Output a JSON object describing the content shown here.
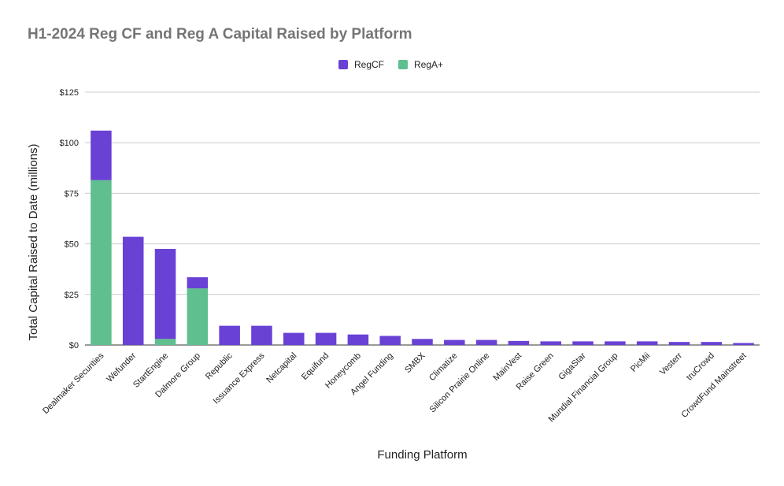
{
  "chart_data": {
    "type": "bar",
    "stacked": true,
    "title": "H1-2024 Reg CF and Reg A Capital Raised by Platform",
    "xlabel": "Funding Platform",
    "ylabel": "Total Capital Raised to Date (millions)",
    "ylim": [
      0,
      125
    ],
    "yticks": [
      "$0",
      "$25",
      "$50",
      "$75",
      "$100",
      "$125"
    ],
    "grid": true,
    "legend_position": "top",
    "categories": [
      "Dealmaker Securities",
      "Wefunder",
      "StartEngine",
      "Dalmore Group",
      "Republic",
      "Issuance Express",
      "Netcapital",
      "Equifund",
      "Honeycomb",
      "Angel Funding",
      "SMBX",
      "Climatize",
      "Silicon Prairie Online",
      "MainVest",
      "Raise Green",
      "GigaStar",
      "Mundial Financial Group",
      "PicMii",
      "Vesterr",
      "truCrowd",
      "CrowdFund Mainstreet"
    ],
    "series": [
      {
        "name": "RegA+",
        "color": "#5fbf8f",
        "values": [
          81.5,
          0,
          3,
          28,
          0,
          0,
          0,
          0,
          0,
          0,
          0,
          0,
          0,
          0,
          0,
          0,
          0,
          0,
          0,
          0,
          0
        ]
      },
      {
        "name": "RegCF",
        "color": "#6941d5",
        "values": [
          24.5,
          53.5,
          44.5,
          5.5,
          9.5,
          9.5,
          6,
          6,
          5.2,
          4.5,
          3,
          2.5,
          2.5,
          2,
          1.8,
          1.8,
          1.8,
          1.8,
          1.5,
          1.5,
          1
        ]
      }
    ]
  }
}
